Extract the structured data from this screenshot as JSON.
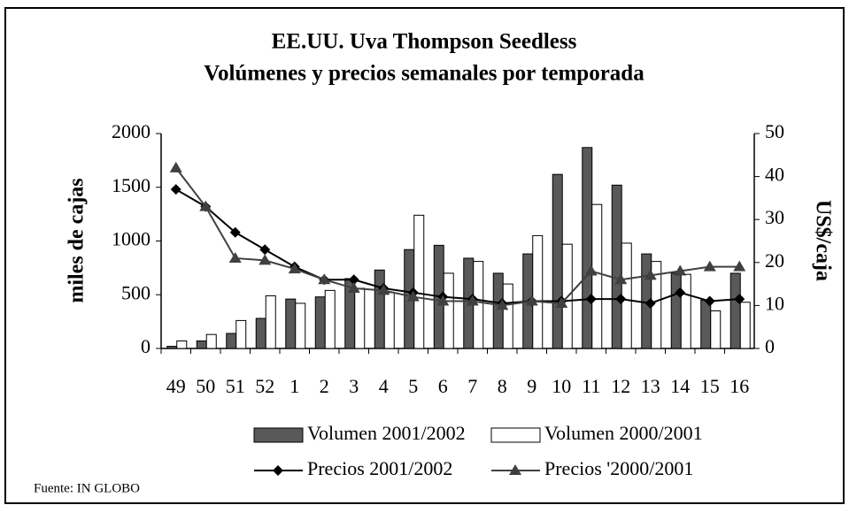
{
  "chart_data": {
    "type": "bar",
    "title": "EE.UU. Uva Thompson Seedless",
    "subtitle": "Volúmenes y precios semanales por temporada",
    "ylabel": "miles de cajas",
    "y2label": "US$/caja",
    "source": "Fuente: IN GLOBO",
    "categories": [
      "49",
      "50",
      "51",
      "52",
      "1",
      "2",
      "3",
      "4",
      "5",
      "6",
      "7",
      "8",
      "9",
      "10",
      "11",
      "12",
      "13",
      "14",
      "15",
      "16"
    ],
    "ylim": [
      0,
      2000
    ],
    "yticks": [
      0,
      500,
      1000,
      1500,
      2000
    ],
    "y2lim": [
      0,
      50
    ],
    "y2ticks": [
      0,
      10,
      20,
      30,
      40,
      50
    ],
    "series": [
      {
        "name": "Volumen 2001/2002",
        "type": "bar",
        "color": "#595959",
        "values": [
          20,
          70,
          140,
          280,
          460,
          480,
          650,
          730,
          920,
          960,
          840,
          700,
          880,
          1620,
          1870,
          1520,
          880,
          700,
          450,
          700
        ]
      },
      {
        "name": "Volumen 2000/2001",
        "type": "bar",
        "color": "#ffffff",
        "values": [
          70,
          130,
          260,
          490,
          420,
          540,
          560,
          520,
          1240,
          700,
          810,
          600,
          1050,
          970,
          1340,
          980,
          810,
          690,
          350,
          430
        ]
      },
      {
        "name": "Precios 2001/2002",
        "type": "line",
        "marker": "diamond",
        "color": "#000000",
        "axis": "y2",
        "values": [
          37,
          33,
          27,
          23,
          19,
          16,
          16,
          14,
          13,
          12,
          11.5,
          10.5,
          11,
          11,
          11.5,
          11.5,
          10.5,
          13,
          11,
          11.5
        ]
      },
      {
        "name": "Precios '2000/2001",
        "type": "line",
        "marker": "triangle",
        "color": "#404040",
        "axis": "y2",
        "values": [
          42,
          33,
          21,
          20.5,
          18.5,
          16,
          14,
          13.5,
          12,
          11,
          11,
          10,
          11,
          10.5,
          18,
          16,
          17,
          18,
          19,
          19
        ]
      }
    ]
  }
}
